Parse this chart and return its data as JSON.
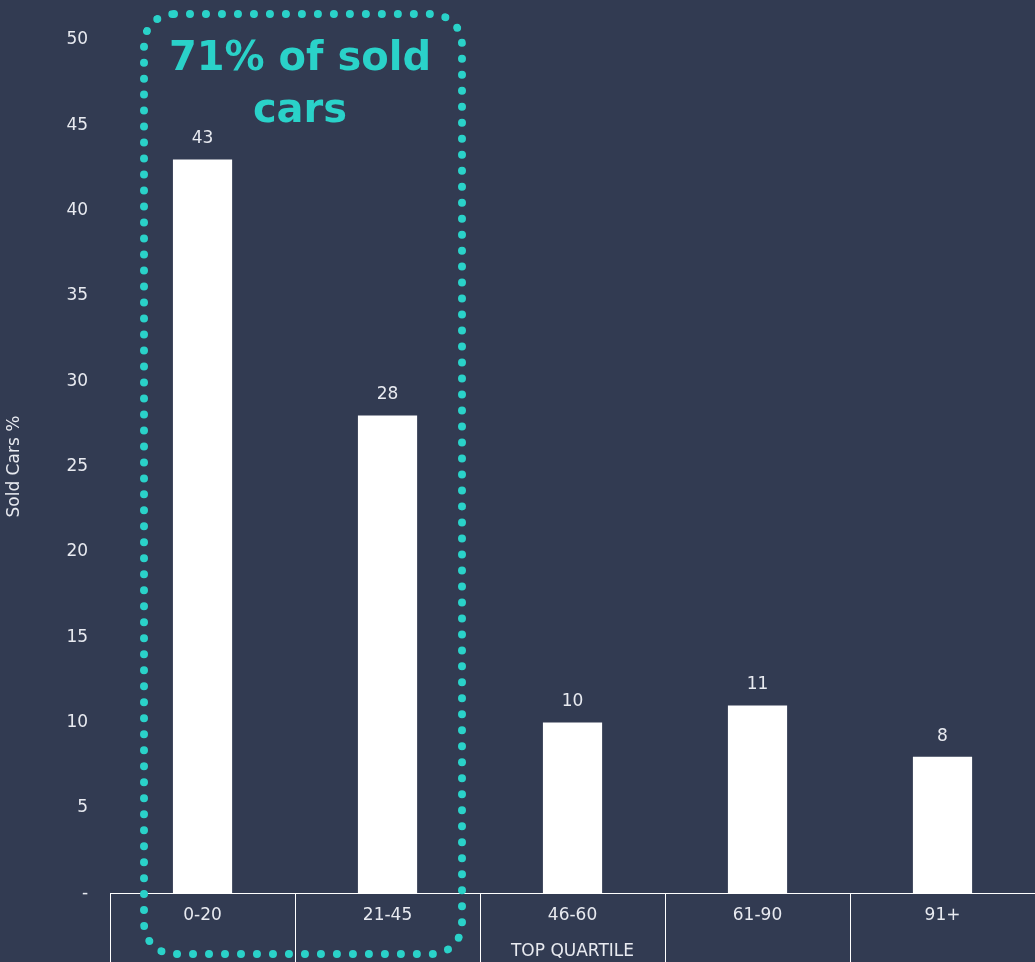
{
  "chart_data": {
    "type": "bar",
    "xlabel": "TOP QUARTILE",
    "ylabel": "Sold Cars %",
    "categories": [
      "0-20",
      "21-45",
      "46-60",
      "61-90",
      "91+"
    ],
    "values": [
      43,
      28,
      10,
      11,
      8
    ],
    "color": "#ffffff",
    "ylim": [
      0,
      50
    ],
    "yticks": [
      {
        "value": 0,
        "label": "-"
      },
      5,
      10,
      15,
      20,
      25,
      30,
      35,
      40,
      45,
      50
    ],
    "grid": false,
    "legend": false,
    "data_labels": true,
    "annotations": [
      "71% of sold cars"
    ]
  }
}
